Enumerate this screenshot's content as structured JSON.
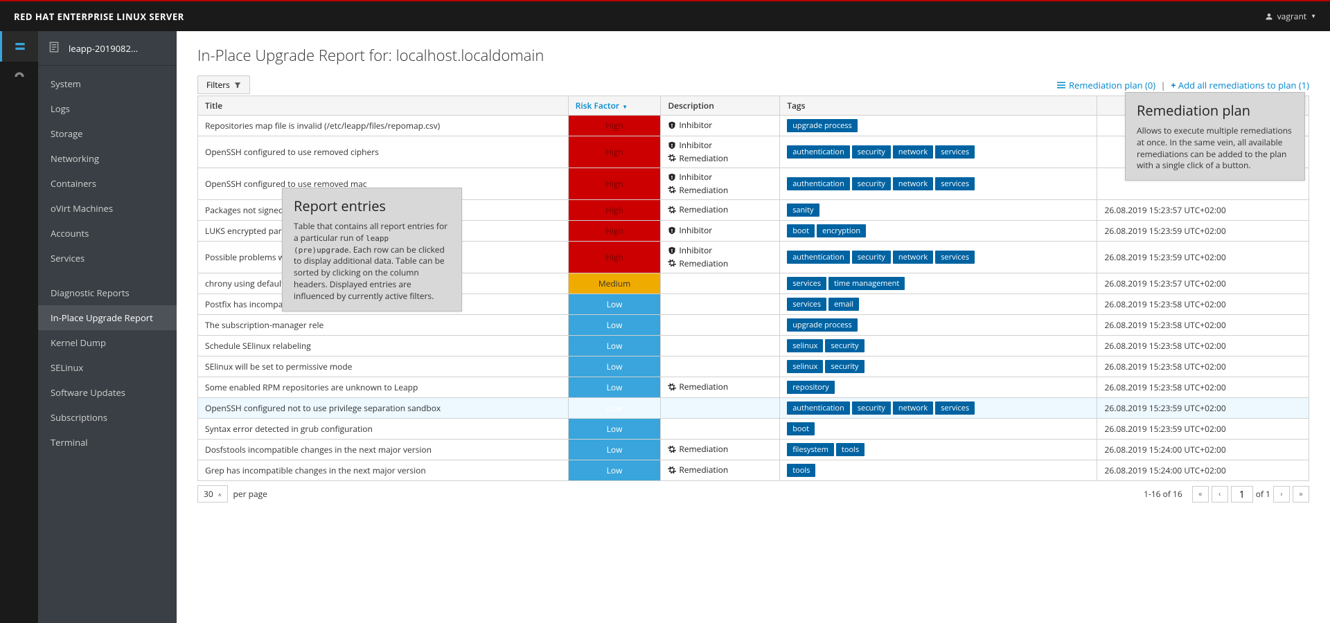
{
  "brand": "RED HAT ENTERPRISE LINUX SERVER",
  "user": {
    "name": "vagrant"
  },
  "tab": {
    "label": "leapp-2019082..."
  },
  "nav": {
    "items": [
      {
        "label": "System",
        "active": false
      },
      {
        "label": "Logs",
        "active": false
      },
      {
        "label": "Storage",
        "active": false
      },
      {
        "label": "Networking",
        "active": false
      },
      {
        "label": "Containers",
        "active": false
      },
      {
        "label": "oVirt Machines",
        "active": false
      },
      {
        "label": "Accounts",
        "active": false
      },
      {
        "label": "Services",
        "active": false
      },
      {
        "label": "Diagnostic Reports",
        "active": false,
        "gap_before": true
      },
      {
        "label": "In-Place Upgrade Report",
        "active": true
      },
      {
        "label": "Kernel Dump",
        "active": false
      },
      {
        "label": "SELinux",
        "active": false
      },
      {
        "label": "Software Updates",
        "active": false
      },
      {
        "label": "Subscriptions",
        "active": false
      },
      {
        "label": "Terminal",
        "active": false
      }
    ]
  },
  "page": {
    "title": "In-Place Upgrade Report for: localhost.localdomain",
    "filters_btn": "Filters",
    "remediation_link": "Remediation plan (0)",
    "add_all_link": "Add all remediations to plan (1)"
  },
  "columns": {
    "title": "Title",
    "risk": "Risk Factor",
    "desc": "Description",
    "tags": "Tags",
    "time": ""
  },
  "risk_colors": {
    "High": "#cc0000",
    "Medium": "#f0ab00",
    "Low": "#39a5dc"
  },
  "tag_bg": "#0063a2",
  "rows": [
    {
      "title": "Repositories map file is invalid (/etc/leapp/files/repomap.csv)",
      "risk": "High",
      "desc": [
        "Inhibitor"
      ],
      "tags": [
        "upgrade process"
      ],
      "time": ""
    },
    {
      "title": "OpenSSH configured to use removed ciphers",
      "risk": "High",
      "desc": [
        "Inhibitor",
        "Remediation"
      ],
      "tags": [
        "authentication",
        "security",
        "network",
        "services"
      ],
      "time": ""
    },
    {
      "title": "OpenSSH configured to use removed mac",
      "risk": "High",
      "desc": [
        "Inhibitor",
        "Remediation"
      ],
      "tags": [
        "authentication",
        "security",
        "network",
        "services"
      ],
      "time": ""
    },
    {
      "title": "Packages not signed by Red Hat found in the system",
      "risk": "High",
      "desc": [
        "Remediation"
      ],
      "tags": [
        "sanity"
      ],
      "time": "26.08.2019 15:23:57 UTC+02:00"
    },
    {
      "title": "LUKS encrypted partition detec",
      "risk": "High",
      "desc": [
        "Inhibitor"
      ],
      "tags": [
        "boot",
        "encryption"
      ],
      "time": "26.08.2019 15:23:59 UTC+02:00"
    },
    {
      "title": "Possible problems with remote",
      "risk": "High",
      "desc": [
        "Inhibitor",
        "Remediation"
      ],
      "tags": [
        "authentication",
        "security",
        "network",
        "services"
      ],
      "time": "26.08.2019 15:23:59 UTC+02:00"
    },
    {
      "title": "chrony using default configura",
      "risk": "Medium",
      "desc": [],
      "tags": [
        "services",
        "time management"
      ],
      "time": "26.08.2019 15:23:57 UTC+02:00"
    },
    {
      "title": "Postfix has incompatible chang",
      "risk": "Low",
      "desc": [],
      "tags": [
        "services",
        "email"
      ],
      "time": "26.08.2019 15:23:58 UTC+02:00"
    },
    {
      "title": "The subscription-manager rele",
      "risk": "Low",
      "desc": [],
      "tags": [
        "upgrade process"
      ],
      "time": "26.08.2019 15:23:58 UTC+02:00"
    },
    {
      "title": "Schedule SElinux relabeling",
      "risk": "Low",
      "desc": [],
      "tags": [
        "selinux",
        "security"
      ],
      "time": "26.08.2019 15:23:58 UTC+02:00"
    },
    {
      "title": "SElinux will be set to permissive mode",
      "risk": "Low",
      "desc": [],
      "tags": [
        "selinux",
        "security"
      ],
      "time": "26.08.2019 15:23:58 UTC+02:00"
    },
    {
      "title": "Some enabled RPM repositories are unknown to Leapp",
      "risk": "Low",
      "desc": [
        "Remediation"
      ],
      "tags": [
        "repository"
      ],
      "time": "26.08.2019 15:23:58 UTC+02:00"
    },
    {
      "title": "OpenSSH configured not to use privilege separation sandbox",
      "risk": "Low",
      "desc": [],
      "tags": [
        "authentication",
        "security",
        "network",
        "services"
      ],
      "time": "26.08.2019 15:23:59 UTC+02:00",
      "hovered": true
    },
    {
      "title": "Syntax error detected in grub configuration",
      "risk": "Low",
      "desc": [],
      "tags": [
        "boot"
      ],
      "time": "26.08.2019 15:23:59 UTC+02:00"
    },
    {
      "title": "Dosfstools incompatible changes in the next major version",
      "risk": "Low",
      "desc": [
        "Remediation"
      ],
      "tags": [
        "filesystem",
        "tools"
      ],
      "time": "26.08.2019 15:24:00 UTC+02:00"
    },
    {
      "title": "Grep has incompatible changes in the next major version",
      "risk": "Low",
      "desc": [
        "Remediation"
      ],
      "tags": [
        "tools"
      ],
      "time": "26.08.2019 15:24:00 UTC+02:00"
    }
  ],
  "pager": {
    "per_page_value": "30",
    "per_page_label": "per page",
    "count": "1-16 of 16",
    "page_input": "1",
    "of_label": "of 1"
  },
  "callouts": {
    "entries": {
      "title": "Report entries",
      "body_pre": "Table that contains all report entries for a particular run of ",
      "body_code": "leapp (pre)upgrade",
      "body_post": ". Each row can be clicked to display additional data. Table can be sorted by clicking on the column headers. Displayed entries are influenced by currently active filters."
    },
    "plan": {
      "title": "Remediation plan",
      "body": "Allows to execute multiple remediations at once. In the same vein, all available remediations can be added to the plan with a single click of a button."
    }
  }
}
